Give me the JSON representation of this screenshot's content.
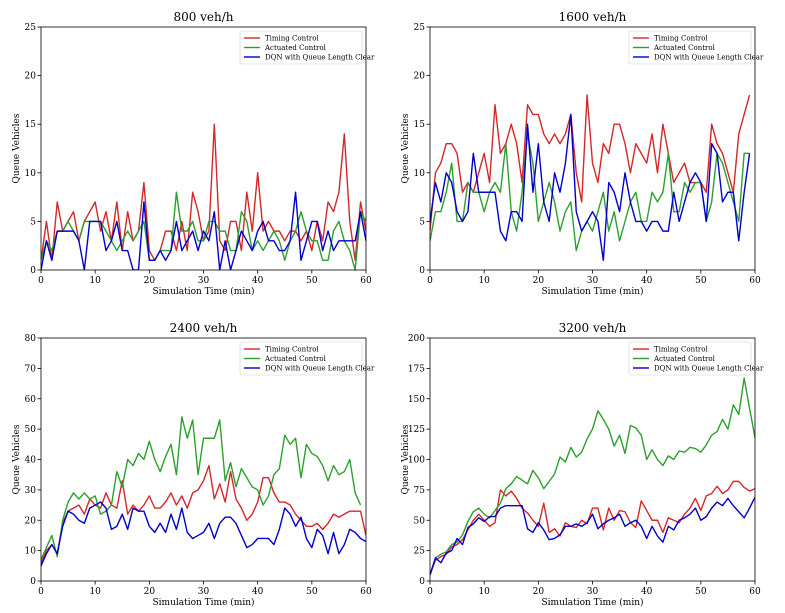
{
  "colors": {
    "timing": "#d62728",
    "actuated": "#2ca02c",
    "dqn": "#0000cc"
  },
  "chart_data": [
    {
      "type": "line",
      "title": "800 veh/h",
      "xlabel": "Simulation Time (min)",
      "ylabel": "Queue Vehicles",
      "xlim": [
        0,
        60
      ],
      "ylim": [
        0,
        25
      ],
      "xticks": [
        0,
        10,
        20,
        30,
        40,
        50,
        60
      ],
      "yticks": [
        0,
        5,
        10,
        15,
        20,
        25
      ],
      "legend_position": "top-right",
      "series": [
        {
          "name": "Timing Control",
          "color_key": "timing",
          "values": [
            1,
            5,
            1,
            7,
            4,
            5,
            6,
            3,
            5,
            6,
            7,
            4,
            6,
            3,
            7,
            2,
            6,
            3,
            4,
            9,
            2,
            1,
            2,
            4,
            4,
            2,
            5,
            2,
            8,
            6,
            3,
            4,
            15,
            3,
            2,
            5,
            5,
            2,
            8,
            4,
            10,
            4,
            5,
            4,
            4,
            3,
            4,
            4,
            3,
            4,
            2,
            5,
            3,
            7,
            6,
            8,
            14,
            5,
            1,
            7,
            4
          ]
        },
        {
          "name": "Actuated Control",
          "color_key": "actuated",
          "values": [
            1,
            3,
            2,
            4,
            4,
            5,
            4,
            3,
            5,
            5,
            5,
            5,
            4,
            3,
            2,
            3,
            4,
            3,
            4,
            5,
            1,
            1,
            2,
            2,
            2,
            8,
            4,
            4,
            5,
            3,
            3,
            5,
            5,
            4,
            4,
            2,
            2,
            6,
            5,
            2,
            3,
            2,
            3,
            4,
            3,
            1,
            3,
            4,
            6,
            4,
            3,
            3,
            1,
            1,
            4,
            5,
            3,
            2,
            0,
            6,
            5
          ]
        },
        {
          "name": "DQN with Queue Length Clear",
          "color_key": "dqn",
          "values": [
            0,
            3,
            1,
            4,
            4,
            4,
            4,
            3,
            0,
            5,
            5,
            5,
            2,
            3,
            5,
            2,
            2,
            0,
            0,
            7,
            1,
            1,
            2,
            1,
            2,
            5,
            2,
            3,
            4,
            2,
            4,
            3,
            6,
            0,
            3,
            0,
            2,
            4,
            3,
            2,
            4,
            5,
            3,
            3,
            2,
            2,
            3,
            8,
            1,
            3,
            5,
            5,
            2,
            4,
            2,
            3,
            3,
            3,
            3,
            6,
            3
          ]
        }
      ]
    },
    {
      "type": "line",
      "title": "1600 veh/h",
      "xlabel": "Simulation Time (min)",
      "ylabel": "Queue Vehicles",
      "xlim": [
        0,
        60
      ],
      "ylim": [
        0,
        25
      ],
      "xticks": [
        0,
        10,
        20,
        30,
        40,
        50,
        60
      ],
      "yticks": [
        0,
        5,
        10,
        15,
        20,
        25
      ],
      "legend_position": "top-right",
      "series": [
        {
          "name": "Timing Control",
          "color_key": "timing",
          "values": [
            4,
            10,
            11,
            13,
            13,
            12,
            8,
            9,
            8,
            10,
            12,
            9,
            17,
            12,
            13,
            15,
            13,
            9,
            17,
            16,
            16,
            14,
            13,
            14,
            13,
            14,
            16,
            10,
            7,
            18,
            11,
            9,
            13,
            12,
            15,
            15,
            13,
            10,
            13,
            12,
            11,
            14,
            10,
            15,
            12,
            9,
            10,
            11,
            9,
            9,
            9,
            8,
            15,
            13,
            12,
            10,
            8,
            14,
            16,
            18
          ]
        },
        {
          "name": "Actuated Control",
          "color_key": "actuated",
          "values": [
            3,
            6,
            6,
            8,
            11,
            5,
            5,
            9,
            8,
            8,
            6,
            8,
            9,
            8,
            13,
            6,
            4,
            8,
            14,
            11,
            5,
            7,
            9,
            7,
            4,
            6,
            7,
            2,
            4,
            5,
            4,
            6,
            8,
            4,
            6,
            3,
            5,
            7,
            8,
            5,
            5,
            8,
            7,
            8,
            12,
            6,
            6,
            9,
            8,
            9,
            9,
            5,
            7,
            12,
            11,
            9,
            7,
            5,
            12,
            12
          ]
        },
        {
          "name": "DQN with Queue Length Clear",
          "color_key": "dqn",
          "values": [
            5,
            9,
            7,
            10,
            9,
            6,
            5,
            6,
            12,
            8,
            8,
            8,
            8,
            4,
            3,
            6,
            6,
            5,
            15,
            8,
            13,
            7,
            5,
            10,
            8,
            11,
            16,
            6,
            4,
            5,
            6,
            5,
            1,
            9,
            8,
            6,
            10,
            7,
            5,
            5,
            4,
            5,
            5,
            4,
            4,
            8,
            5,
            7,
            9,
            10,
            9,
            5,
            13,
            12,
            7,
            8,
            8,
            3,
            8,
            12
          ]
        }
      ]
    },
    {
      "type": "line",
      "title": "2400 veh/h",
      "xlabel": "Simulation Time (min)",
      "ylabel": "Queue Vehicles",
      "xlim": [
        0,
        60
      ],
      "ylim": [
        0,
        80
      ],
      "xticks": [
        0,
        10,
        20,
        30,
        40,
        50,
        60
      ],
      "yticks": [
        0,
        10,
        20,
        30,
        40,
        50,
        60,
        70,
        80
      ],
      "legend_position": "top-right",
      "series": [
        {
          "name": "Timing Control",
          "color_key": "timing",
          "values": [
            6,
            10,
            12,
            9,
            19,
            23,
            24,
            25,
            22,
            27,
            25,
            24,
            29,
            25,
            24,
            33,
            22,
            25,
            23,
            25,
            28,
            24,
            24,
            26,
            29,
            25,
            28,
            24,
            29,
            30,
            33,
            38,
            27,
            32,
            26,
            36,
            27,
            24,
            20,
            22,
            26,
            34,
            34,
            29,
            26,
            26,
            25,
            22,
            20,
            18,
            18,
            19,
            17,
            19,
            22,
            21,
            22,
            23,
            23,
            23,
            15
          ]
        },
        {
          "name": "Actuated Control",
          "color_key": "actuated",
          "values": [
            7,
            11,
            15,
            8,
            20,
            26,
            29,
            27,
            29,
            27,
            28,
            22,
            23,
            25,
            36,
            31,
            40,
            38,
            42,
            40,
            46,
            40,
            36,
            41,
            45,
            35,
            54,
            47,
            53,
            35,
            47,
            47,
            47,
            53,
            33,
            39,
            31,
            37,
            34,
            31,
            30,
            25,
            28,
            35,
            37,
            48,
            45,
            47,
            34,
            45,
            42,
            41,
            38,
            33,
            38,
            35,
            36,
            40,
            29,
            25
          ]
        },
        {
          "name": "DQN with Queue Length Clear",
          "color_key": "dqn",
          "values": [
            5,
            9,
            12,
            9,
            18,
            23,
            22,
            20,
            19,
            24,
            25,
            26,
            24,
            17,
            18,
            22,
            17,
            24,
            23,
            23,
            18,
            16,
            19,
            16,
            22,
            17,
            24,
            16,
            14,
            15,
            16,
            19,
            14,
            19,
            21,
            21,
            19,
            15,
            11,
            12,
            14,
            14,
            14,
            12,
            17,
            24,
            22,
            18,
            21,
            14,
            11,
            17,
            15,
            9,
            16,
            9,
            12,
            17,
            16,
            14,
            13
          ]
        }
      ]
    },
    {
      "type": "line",
      "title": "3200 veh/h",
      "xlabel": "Simulation Time (min)",
      "ylabel": "Queue Vehicles",
      "xlim": [
        0,
        60
      ],
      "ylim": [
        0,
        200
      ],
      "xticks": [
        0,
        10,
        20,
        30,
        40,
        50,
        60
      ],
      "yticks": [
        0,
        25,
        50,
        75,
        100,
        125,
        150,
        175,
        200
      ],
      "legend_position": "top-right",
      "series": [
        {
          "name": "Timing Control",
          "color_key": "timing",
          "values": [
            5,
            17,
            20,
            22,
            28,
            30,
            34,
            42,
            50,
            55,
            50,
            45,
            48,
            75,
            70,
            74,
            68,
            60,
            56,
            50,
            45,
            64,
            40,
            43,
            37,
            48,
            45,
            44,
            50,
            47,
            60,
            60,
            42,
            60,
            50,
            58,
            57,
            48,
            44,
            66,
            58,
            50,
            50,
            40,
            52,
            50,
            48,
            55,
            60,
            68,
            58,
            70,
            72,
            78,
            72,
            75,
            82,
            82,
            77,
            74,
            76
          ]
        },
        {
          "name": "Actuated Control",
          "color_key": "actuated",
          "values": [
            5,
            19,
            22,
            24,
            30,
            32,
            38,
            49,
            57,
            60,
            55,
            52,
            58,
            64,
            76,
            80,
            86,
            83,
            80,
            91,
            85,
            76,
            82,
            88,
            102,
            98,
            110,
            102,
            106,
            117,
            125,
            140,
            133,
            125,
            111,
            120,
            105,
            128,
            126,
            120,
            100,
            108,
            100,
            95,
            103,
            100,
            107,
            106,
            110,
            109,
            106,
            112,
            120,
            123,
            133,
            125,
            145,
            137,
            167,
            142,
            118
          ]
        },
        {
          "name": "DQN with Queue Length Clear",
          "color_key": "dqn",
          "values": [
            5,
            19,
            15,
            23,
            25,
            35,
            30,
            44,
            47,
            52,
            49,
            53,
            53,
            60,
            62,
            62,
            62,
            62,
            43,
            40,
            48,
            42,
            34,
            35,
            38,
            45,
            45,
            47,
            45,
            48,
            55,
            43,
            47,
            50,
            52,
            55,
            45,
            48,
            50,
            45,
            35,
            45,
            37,
            32,
            45,
            42,
            50,
            52,
            55,
            60,
            50,
            53,
            60,
            65,
            62,
            68,
            62,
            57,
            52,
            60,
            69
          ]
        }
      ]
    }
  ]
}
